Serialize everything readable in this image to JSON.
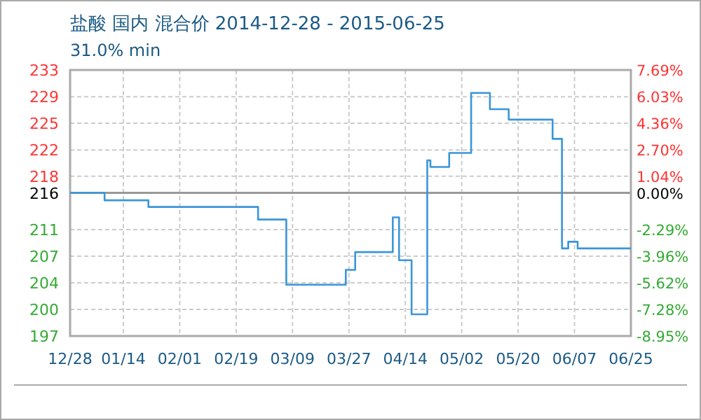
{
  "chart_data": {
    "type": "step",
    "title": "盐酸 国内 混合价 2014-12-28 - 2015-06-25",
    "subtitle": "31.0% min",
    "x": [
      "2014-12-28",
      "2015-01-08",
      "2015-01-22",
      "2015-02-26",
      "2015-03-07",
      "2015-03-26",
      "2015-03-29",
      "2015-04-10",
      "2015-04-12",
      "2015-04-16",
      "2015-04-21",
      "2015-04-22",
      "2015-04-28",
      "2015-05-05",
      "2015-05-11",
      "2015-05-17",
      "2015-05-31",
      "2015-06-03",
      "2015-06-05",
      "2015-06-08",
      "2015-06-25"
    ],
    "series": [
      {
        "color": "#3a96d8",
        "values": [
          216,
          215.0,
          214.1,
          212.4,
          203.6,
          205.6,
          208.0,
          212.7,
          206.9,
          199.6,
          220.4,
          219.5,
          221.4,
          229.5,
          227.3,
          225.9,
          223.3,
          208.5,
          209.4,
          208.5,
          208.5
        ]
      }
    ],
    "xlim": [
      "2014-12-28",
      "2015-06-25"
    ],
    "xticks": [
      {
        "value": "2014-12-28",
        "label": "12/28"
      },
      {
        "value": "2015-01-14",
        "label": "01/14"
      },
      {
        "value": "2015-02-01",
        "label": "02/01"
      },
      {
        "value": "2015-02-19",
        "label": "02/19"
      },
      {
        "value": "2015-03-09",
        "label": "03/09"
      },
      {
        "value": "2015-03-27",
        "label": "03/27"
      },
      {
        "value": "2015-04-14",
        "label": "04/14"
      },
      {
        "value": "2015-05-02",
        "label": "05/02"
      },
      {
        "value": "2015-05-20",
        "label": "05/20"
      },
      {
        "value": "2015-06-07",
        "label": "06/07"
      },
      {
        "value": "2015-06-25",
        "label": "06/25"
      }
    ],
    "ylim": [
      196.67,
      232.6
    ],
    "yticks": [
      {
        "value": 196.67,
        "label": "197"
      },
      {
        "value": 200.26,
        "label": "200"
      },
      {
        "value": 203.86,
        "label": "204"
      },
      {
        "value": 207.45,
        "label": "207"
      },
      {
        "value": 211.05,
        "label": "211"
      },
      {
        "value": 216,
        "label": "216"
      },
      {
        "value": 218.25,
        "label": "218"
      },
      {
        "value": 221.8,
        "label": "222"
      },
      {
        "value": 225.42,
        "label": "225"
      },
      {
        "value": 228.99,
        "label": "229"
      },
      {
        "value": 232.6,
        "label": "233"
      }
    ],
    "y2lim": [
      -8.95,
      7.69
    ],
    "y2ticks": [
      {
        "value": -8.95,
        "label": "-8.95%"
      },
      {
        "value": -7.28,
        "label": "-7.28%"
      },
      {
        "value": -5.62,
        "label": "-5.62%"
      },
      {
        "value": -3.96,
        "label": "-3.96%"
      },
      {
        "value": -2.29,
        "label": "-2.29%"
      },
      {
        "value": 0,
        "label": "0.00%"
      },
      {
        "value": 1.04,
        "label": "1.04%"
      },
      {
        "value": 2.7,
        "label": "2.70%"
      },
      {
        "value": 4.36,
        "label": "4.36%"
      },
      {
        "value": 6.03,
        "label": "6.03%"
      },
      {
        "value": 7.69,
        "label": "7.69%"
      }
    ],
    "ref_lines": [
      {
        "axis": "y",
        "value": 216,
        "color": "#999999"
      }
    ],
    "grid": true
  }
}
